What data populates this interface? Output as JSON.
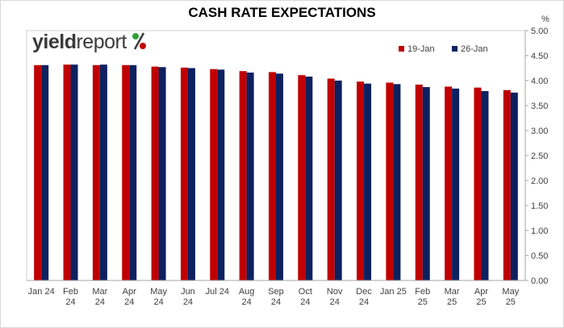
{
  "chart_data": {
    "type": "bar",
    "title": "CASH RATE EXPECTATIONS",
    "ylabel": "%",
    "ylim": [
      0,
      5
    ],
    "yticks": [
      "0.00",
      "0.50",
      "1.00",
      "1.50",
      "2.00",
      "2.50",
      "3.00",
      "3.50",
      "4.00",
      "4.50",
      "5.00"
    ],
    "grid": false,
    "legend_position": "top-right",
    "categories": [
      [
        "Jan 24"
      ],
      [
        "Feb",
        "24"
      ],
      [
        "Mar",
        "24"
      ],
      [
        "Apr",
        "24"
      ],
      [
        "May",
        "24"
      ],
      [
        "Jun",
        "24"
      ],
      [
        "Jul 24"
      ],
      [
        "Aug",
        "24"
      ],
      [
        "Sep",
        "24"
      ],
      [
        "Oct",
        "24"
      ],
      [
        "Nov",
        "24"
      ],
      [
        "Dec",
        "24"
      ],
      [
        "Jan 25"
      ],
      [
        "Feb",
        "25"
      ],
      [
        "Mar",
        "25"
      ],
      [
        "Apr",
        "25"
      ],
      [
        "May",
        "25"
      ]
    ],
    "series": [
      {
        "name": "19-Jan",
        "color": "#c00000",
        "values": [
          4.31,
          4.32,
          4.31,
          4.31,
          4.28,
          4.26,
          4.23,
          4.19,
          4.17,
          4.11,
          4.04,
          3.98,
          3.96,
          3.92,
          3.88,
          3.86,
          3.81
        ]
      },
      {
        "name": "26-Jan",
        "color": "#0d2160",
        "values": [
          4.31,
          4.32,
          4.32,
          4.31,
          4.27,
          4.25,
          4.22,
          4.16,
          4.14,
          4.08,
          4.0,
          3.94,
          3.93,
          3.87,
          3.84,
          3.79,
          3.76
        ]
      }
    ]
  },
  "logo": {
    "text": "yieldreport",
    "symbol": "%",
    "colors": {
      "text": "#3a3a3a",
      "green": "#2e9e3a",
      "red": "#c00000"
    }
  }
}
